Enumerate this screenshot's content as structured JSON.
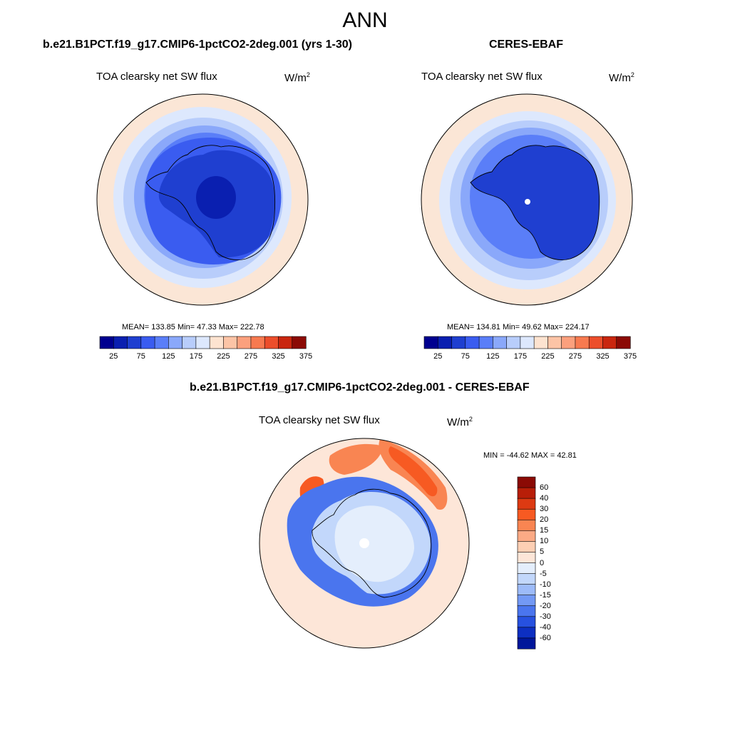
{
  "figure": {
    "season": "ANN",
    "variable": "TOA clearsky net SW flux",
    "units_base": "W/m",
    "units_exp": "2"
  },
  "panels": {
    "test": {
      "title": "b.e21.B1PCT.f19_g17.CMIP6-1pctCO2-2deg.001 (yrs 1-30)",
      "stats_text": "MEAN= 133.85  Min=  47.33  Max= 222.78"
    },
    "ref": {
      "title": "CERES-EBAF",
      "stats_text": "MEAN= 134.81  Min=  49.62  Max= 224.17"
    },
    "diff": {
      "title": "b.e21.B1PCT.f19_g17.CMIP6-1pctCO2-2deg.001 - CERES-EBAF",
      "stats_text": "MIN = -44.62 MAX =  42.81"
    }
  },
  "colorbars": {
    "main": {
      "colors": [
        "#00008f",
        "#0a1fb0",
        "#1f3fd0",
        "#3a5cf0",
        "#5a7ef8",
        "#8aa8fa",
        "#b8cdfb",
        "#dde8fd",
        "#fde3d0",
        "#fcc4a6",
        "#fba07d",
        "#f77a50",
        "#ec4e2b",
        "#c9260f",
        "#8b0a05"
      ],
      "tick_labels": [
        "25",
        "75",
        "125",
        "175",
        "225",
        "275",
        "325",
        "375"
      ]
    },
    "diff": {
      "colors": [
        "#8b0a05",
        "#b81e08",
        "#dd3a12",
        "#f75a22",
        "#f98552",
        "#fbaa85",
        "#fdcfb4",
        "#fde6d8",
        "#e4eefc",
        "#c2d7fb",
        "#9dbbf9",
        "#7399f5",
        "#4a75ee",
        "#2751e0",
        "#0d2fc2",
        "#00169a"
      ],
      "tick_labels": [
        "60",
        "40",
        "30",
        "20",
        "15",
        "10",
        "5",
        "0",
        "-5",
        "-10",
        "-15",
        "-20",
        "-30",
        "-40",
        "-60"
      ]
    }
  }
}
